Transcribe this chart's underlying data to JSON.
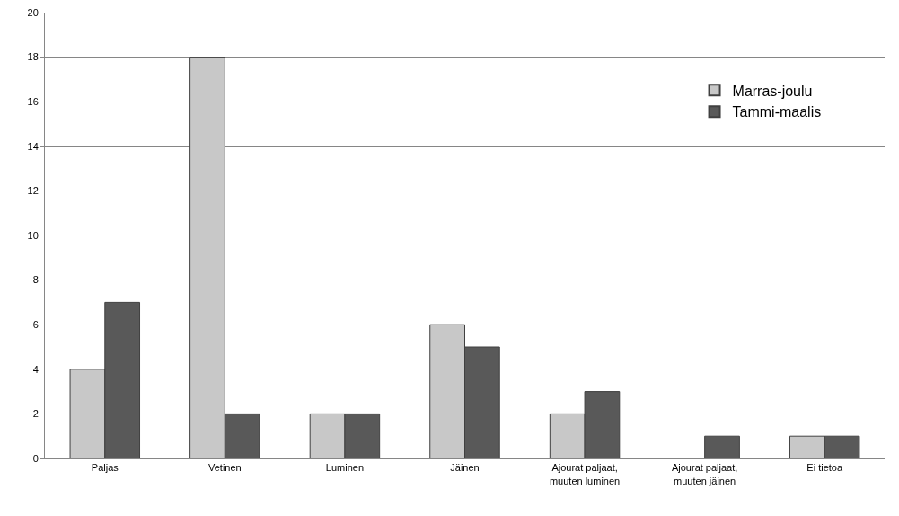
{
  "chart_data": {
    "type": "bar",
    "categories": [
      "Paljas",
      "Vetinen",
      "Luminen",
      "Jäinen",
      "Ajourat paljaat,\nmuuten luminen",
      "Ajourat paljaat,\nmuuten jäinen",
      "Ei tietoa"
    ],
    "series": [
      {
        "name": "Marras-joulu",
        "color": "#c8c8c8",
        "values": [
          4,
          18,
          2,
          6,
          2,
          0,
          1
        ]
      },
      {
        "name": "Tammi-maalis",
        "color": "#595959",
        "values": [
          7,
          2,
          2,
          5,
          3,
          1,
          1
        ]
      }
    ],
    "ylim": [
      0,
      20
    ],
    "yticks": [
      0,
      2,
      4,
      6,
      8,
      10,
      12,
      14,
      16,
      18,
      20
    ],
    "grid": "y",
    "legend": "top right"
  }
}
